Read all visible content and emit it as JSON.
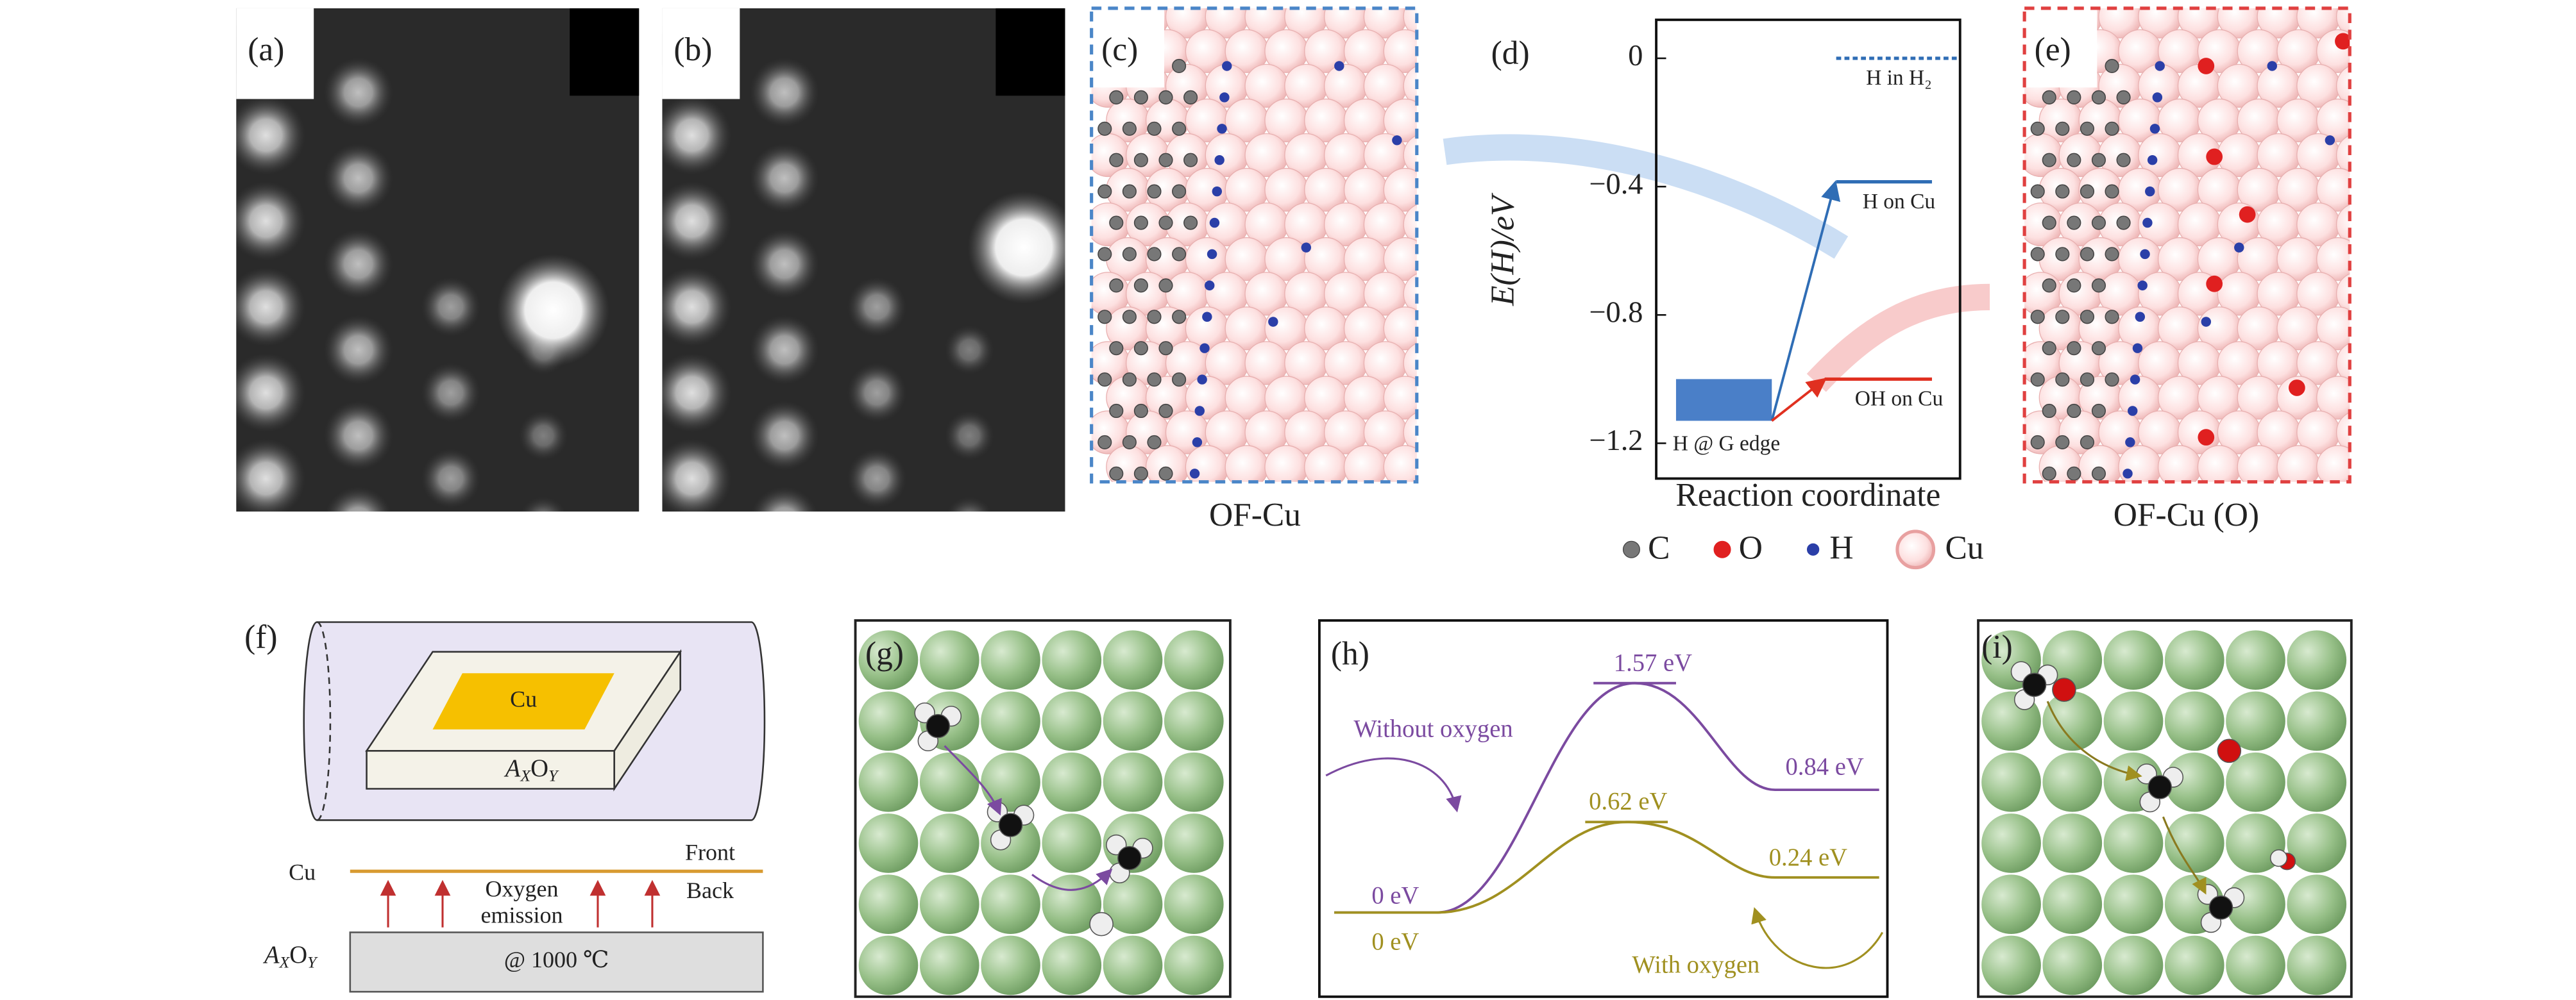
{
  "panels": {
    "a": {
      "label": "(a)"
    },
    "b": {
      "label": "(b)"
    },
    "c": {
      "label": "(c)",
      "caption": "OF-Cu"
    },
    "d": {
      "label": "(d)",
      "ylabel": "E(H)/eV",
      "xlabel": "Reaction coordinate",
      "ylim": [
        -1.31,
        0.12
      ],
      "yticks": [
        0,
        {
          "value": -0.4,
          "label": "−0.4"
        },
        {
          "value": -0.8,
          "label": "−0.8"
        },
        {
          "value": -1.2,
          "label": "−1.2"
        }
      ],
      "levels": [
        {
          "name": "H in H₂",
          "value": 0,
          "color": "#2f6db5"
        },
        {
          "name": "H on Cu",
          "value": -0.385,
          "color": "#2f6db5"
        },
        {
          "name": "OH on Cu",
          "value": -1.0,
          "color": "#e03020"
        }
      ],
      "edge": {
        "name": "H @ G edge",
        "range": [
          -1.13,
          -1.0
        ],
        "color": "#4a7fc8"
      }
    },
    "e": {
      "label": "(e)",
      "caption": "OF-Cu (O)"
    },
    "legend": [
      "C",
      "O",
      "H",
      "Cu"
    ],
    "f": {
      "label": "(f)",
      "cu_plate": "Cu",
      "cu_line": "Cu",
      "front": "Front",
      "back": "Back",
      "emission": [
        "Oxygen",
        "emission"
      ],
      "temperature": "@ 1000 ℃",
      "oxide": {
        "base1": "A",
        "sub1": "X",
        "base2": "O",
        "sub2": "Y"
      }
    },
    "g": {
      "label": "(g)"
    },
    "h": {
      "label": "(h)",
      "ylim": [
        0,
        1.57
      ],
      "series": [
        {
          "name": "Without oxygen",
          "color": "#7b4aa0",
          "values": [
            0,
            1.57,
            0.84
          ],
          "value_labels": [
            "0 eV",
            "1.57 eV",
            "0.84 eV"
          ]
        },
        {
          "name": "With oxygen",
          "color": "#a09020",
          "values": [
            0,
            0.62,
            0.24
          ],
          "value_labels": [
            "0 eV",
            "0.62 eV",
            "0.24 eV"
          ]
        }
      ]
    },
    "i": {
      "label": "(i)"
    }
  }
}
